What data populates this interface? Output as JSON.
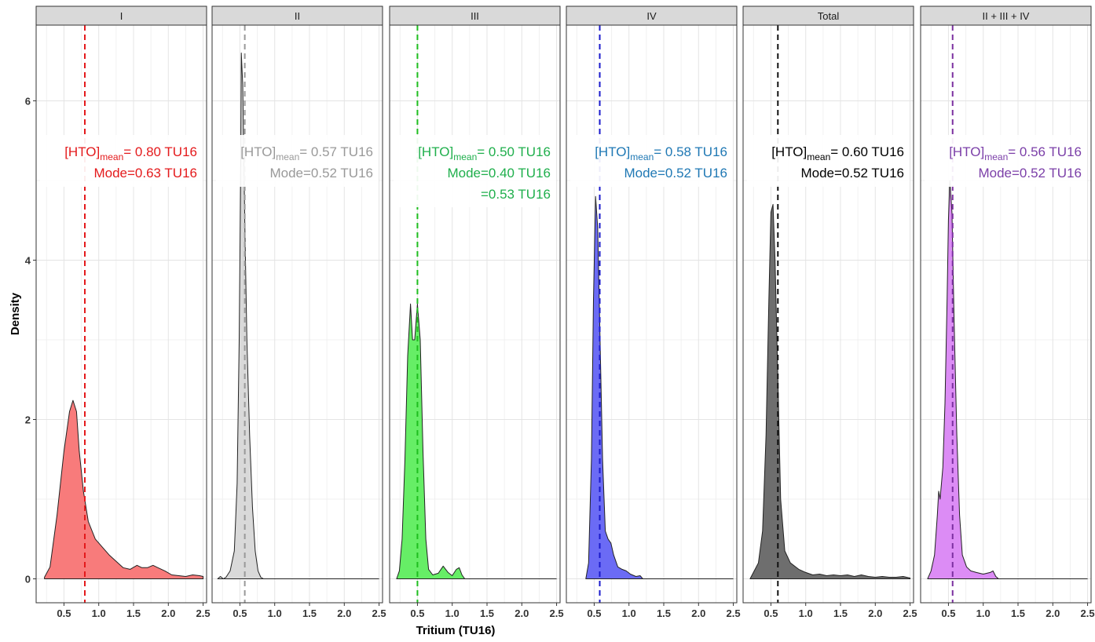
{
  "chart_data": {
    "type": "area",
    "xlabel": "Tritium (TU16)",
    "ylabel": "Density",
    "xlim": [
      0.1,
      2.55
    ],
    "ylim": [
      -0.3,
      6.95
    ],
    "x_ticks": [
      "0.5",
      "1.0",
      "1.5",
      "2.0",
      "2.5"
    ],
    "x_tick_values": [
      0.5,
      1.0,
      1.5,
      2.0,
      2.5
    ],
    "y_ticks": [
      "0",
      "2",
      "4",
      "6"
    ],
    "y_tick_values": [
      0,
      2,
      4,
      6
    ],
    "grid": true,
    "panels": [
      {
        "name": "I",
        "fill": "#f87b7b",
        "line": "#e41a1c",
        "text_color": "#e41a1c",
        "mean": 0.8,
        "ann_label": "[HTO]",
        "ann_sub": "mean",
        "ann_mean": "= 0.80 TU16",
        "ann_mode": "Mode=0.63 TU16",
        "ann_extra": "",
        "curve": [
          [
            0.22,
            0.02
          ],
          [
            0.3,
            0.15
          ],
          [
            0.4,
            0.8
          ],
          [
            0.5,
            1.6
          ],
          [
            0.58,
            2.1
          ],
          [
            0.63,
            2.24
          ],
          [
            0.68,
            2.1
          ],
          [
            0.72,
            1.6
          ],
          [
            0.78,
            1.1
          ],
          [
            0.85,
            0.72
          ],
          [
            0.95,
            0.5
          ],
          [
            1.05,
            0.4
          ],
          [
            1.15,
            0.3
          ],
          [
            1.25,
            0.22
          ],
          [
            1.35,
            0.14
          ],
          [
            1.45,
            0.12
          ],
          [
            1.55,
            0.17
          ],
          [
            1.62,
            0.14
          ],
          [
            1.7,
            0.14
          ],
          [
            1.78,
            0.17
          ],
          [
            1.85,
            0.14
          ],
          [
            1.95,
            0.1
          ],
          [
            2.05,
            0.05
          ],
          [
            2.15,
            0.04
          ],
          [
            2.25,
            0.03
          ],
          [
            2.35,
            0.05
          ],
          [
            2.45,
            0.04
          ],
          [
            2.5,
            0.03
          ]
        ]
      },
      {
        "name": "II",
        "fill": "#d9d9d9",
        "line": "#999999",
        "text_color": "#999999",
        "mean": 0.57,
        "ann_label": "[HTO]",
        "ann_sub": "mean",
        "ann_mean": "= 0.57 TU16",
        "ann_mode": "Mode=0.52 TU16",
        "ann_extra": "",
        "curve": [
          [
            0.18,
            0.0
          ],
          [
            0.22,
            0.03
          ],
          [
            0.26,
            0.0
          ],
          [
            0.3,
            0.02
          ],
          [
            0.36,
            0.1
          ],
          [
            0.42,
            0.35
          ],
          [
            0.46,
            1.2
          ],
          [
            0.49,
            3.0
          ],
          [
            0.51,
            5.0
          ],
          [
            0.52,
            6.6
          ],
          [
            0.54,
            6.2
          ],
          [
            0.57,
            4.5
          ],
          [
            0.6,
            3.0
          ],
          [
            0.64,
            1.8
          ],
          [
            0.68,
            0.9
          ],
          [
            0.72,
            0.35
          ],
          [
            0.76,
            0.1
          ],
          [
            0.8,
            0.02
          ],
          [
            0.84,
            0.0
          ]
        ]
      },
      {
        "name": "III",
        "fill": "#66ee66",
        "line": "#1fbe1f",
        "text_color": "#1faf4c",
        "mean": 0.5,
        "ann_label": "[HTO]",
        "ann_sub": "mean",
        "ann_mean": "= 0.50 TU16",
        "ann_mode": "Mode=0.40 TU16",
        "ann_extra": "=0.53 TU16",
        "curve": [
          [
            0.2,
            0.0
          ],
          [
            0.24,
            0.1
          ],
          [
            0.28,
            0.5
          ],
          [
            0.32,
            1.5
          ],
          [
            0.36,
            2.8
          ],
          [
            0.4,
            3.45
          ],
          [
            0.43,
            3.0
          ],
          [
            0.46,
            3.0
          ],
          [
            0.5,
            3.45
          ],
          [
            0.54,
            3.0
          ],
          [
            0.58,
            1.6
          ],
          [
            0.62,
            0.5
          ],
          [
            0.66,
            0.12
          ],
          [
            0.72,
            0.05
          ],
          [
            0.8,
            0.07
          ],
          [
            0.87,
            0.16
          ],
          [
            0.94,
            0.08
          ],
          [
            1.0,
            0.04
          ],
          [
            1.06,
            0.12
          ],
          [
            1.1,
            0.14
          ],
          [
            1.14,
            0.05
          ],
          [
            1.18,
            0.0
          ]
        ]
      },
      {
        "name": "IV",
        "fill": "#6b6bf5",
        "line": "#1a1acc",
        "text_color": "#1f78b4",
        "mean": 0.58,
        "ann_label": "[HTO]",
        "ann_sub": "mean",
        "ann_mean": "= 0.58 TU16",
        "ann_mode": "Mode=0.52 TU16",
        "ann_extra": "",
        "curve": [
          [
            0.38,
            0.0
          ],
          [
            0.42,
            0.2
          ],
          [
            0.46,
            1.5
          ],
          [
            0.49,
            3.5
          ],
          [
            0.52,
            4.8
          ],
          [
            0.55,
            4.4
          ],
          [
            0.58,
            3.2
          ],
          [
            0.62,
            1.5
          ],
          [
            0.66,
            0.6
          ],
          [
            0.7,
            0.5
          ],
          [
            0.74,
            0.45
          ],
          [
            0.78,
            0.3
          ],
          [
            0.84,
            0.15
          ],
          [
            0.9,
            0.12
          ],
          [
            0.96,
            0.1
          ],
          [
            1.02,
            0.06
          ],
          [
            1.1,
            0.03
          ],
          [
            1.16,
            0.04
          ],
          [
            1.2,
            0.0
          ]
        ]
      },
      {
        "name": "Total",
        "fill": "#6e6e6e",
        "line": "#111111",
        "text_color": "#000000",
        "mean": 0.6,
        "ann_label": "[HTO]",
        "ann_sub": "mean",
        "ann_mean": "= 0.60 TU16",
        "ann_mode": "Mode=0.52 TU16",
        "ann_extra": "",
        "curve": [
          [
            0.2,
            0.0
          ],
          [
            0.26,
            0.1
          ],
          [
            0.32,
            0.2
          ],
          [
            0.38,
            0.6
          ],
          [
            0.43,
            1.8
          ],
          [
            0.47,
            3.5
          ],
          [
            0.5,
            4.6
          ],
          [
            0.53,
            4.7
          ],
          [
            0.56,
            4.0
          ],
          [
            0.6,
            2.5
          ],
          [
            0.64,
            1.0
          ],
          [
            0.7,
            0.35
          ],
          [
            0.78,
            0.2
          ],
          [
            0.9,
            0.12
          ],
          [
            1.0,
            0.08
          ],
          [
            1.1,
            0.05
          ],
          [
            1.2,
            0.06
          ],
          [
            1.3,
            0.04
          ],
          [
            1.4,
            0.05
          ],
          [
            1.5,
            0.04
          ],
          [
            1.6,
            0.05
          ],
          [
            1.7,
            0.03
          ],
          [
            1.8,
            0.05
          ],
          [
            1.9,
            0.03
          ],
          [
            2.0,
            0.02
          ],
          [
            2.1,
            0.03
          ],
          [
            2.2,
            0.02
          ],
          [
            2.3,
            0.02
          ],
          [
            2.4,
            0.03
          ],
          [
            2.5,
            0.01
          ]
        ]
      },
      {
        "name": "II + III + IV",
        "fill": "#dc8cf5",
        "line": "#7b2fa0",
        "text_color": "#7b3fa8",
        "mean": 0.56,
        "ann_label": "[HTO]",
        "ann_sub": "mean",
        "ann_mean": "= 0.56 TU16",
        "ann_mode": "Mode=0.52 TU16",
        "ann_extra": "",
        "curve": [
          [
            0.2,
            0.0
          ],
          [
            0.25,
            0.1
          ],
          [
            0.3,
            0.3
          ],
          [
            0.34,
            0.8
          ],
          [
            0.36,
            1.1
          ],
          [
            0.38,
            1.0
          ],
          [
            0.42,
            1.4
          ],
          [
            0.45,
            2.2
          ],
          [
            0.48,
            3.5
          ],
          [
            0.5,
            4.5
          ],
          [
            0.52,
            5.0
          ],
          [
            0.55,
            4.6
          ],
          [
            0.58,
            3.3
          ],
          [
            0.62,
            1.8
          ],
          [
            0.66,
            0.8
          ],
          [
            0.7,
            0.3
          ],
          [
            0.76,
            0.15
          ],
          [
            0.82,
            0.1
          ],
          [
            0.9,
            0.08
          ],
          [
            1.0,
            0.06
          ],
          [
            1.1,
            0.08
          ],
          [
            1.14,
            0.1
          ],
          [
            1.18,
            0.03
          ],
          [
            1.22,
            0.0
          ]
        ]
      }
    ]
  }
}
